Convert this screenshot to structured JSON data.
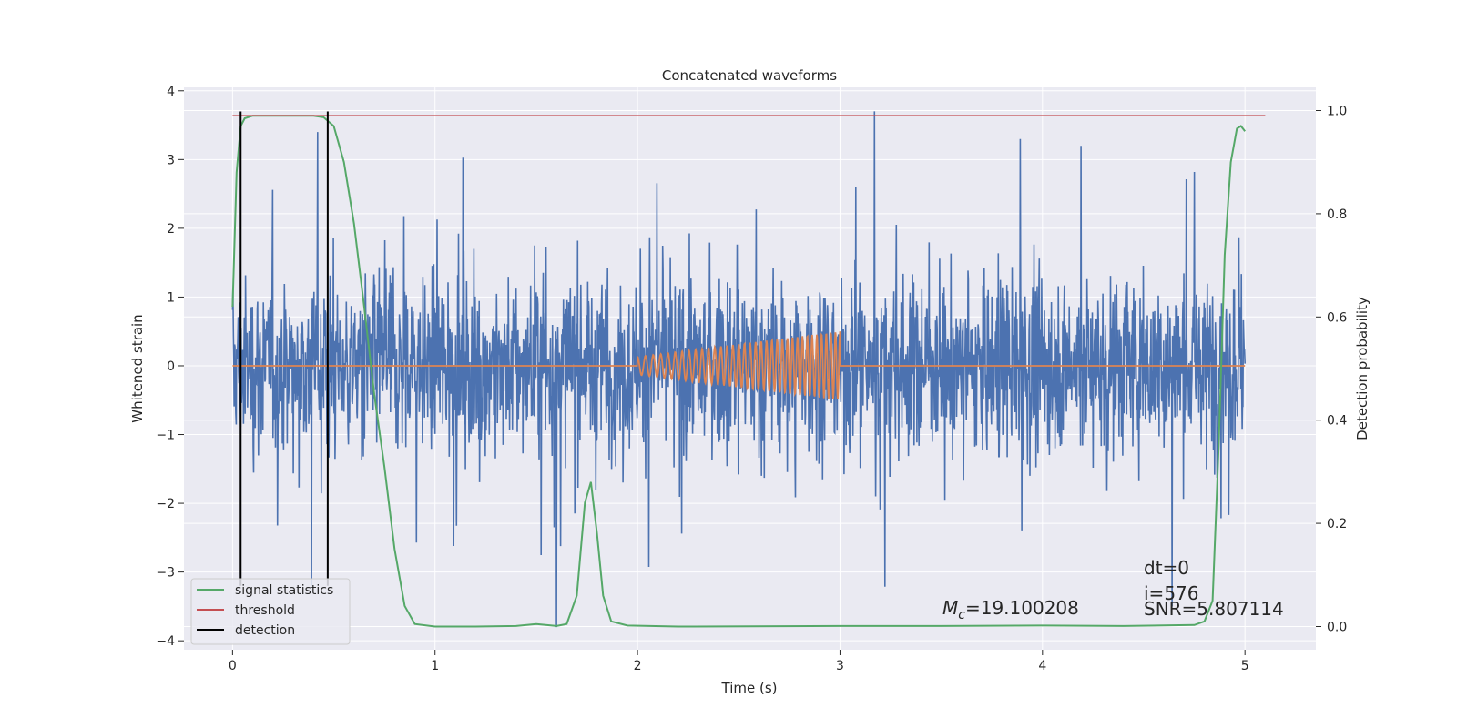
{
  "chart_data": {
    "type": "line",
    "title": "Concatenated waveforms",
    "xlabel": "Time (s)",
    "ylabel": "Whitened strain",
    "ylabel_right": "Detection probability",
    "xlim": [
      -0.24,
      5.35
    ],
    "ylim": [
      -4.13,
      4.05
    ],
    "ylim_right": [
      -0.045,
      1.045
    ],
    "xticks": [
      "0",
      "1",
      "2",
      "3",
      "4",
      "5"
    ],
    "yticks": [
      "4",
      "3",
      "2",
      "1",
      "0",
      "−1",
      "−2",
      "−3",
      "−4"
    ],
    "yticks_right": [
      "1.0",
      "0.8",
      "0.6",
      "0.4",
      "0.2",
      "0.0"
    ],
    "grid": true,
    "legend_position": "lower-left",
    "legend": [
      {
        "name": "signal statistics",
        "color": "#55a868"
      },
      {
        "name": "threshold",
        "color": "#c44e52"
      },
      {
        "name": "detection",
        "color": "#000000"
      }
    ],
    "series": [
      {
        "name": "whitened strain (noise)",
        "axis": "left",
        "color": "#4c72b0",
        "x_range": [
          0,
          5
        ],
        "typical_amplitude": 2.0,
        "peak_max": 3.7,
        "peak_min": -3.8,
        "notable_peaks": [
          [
            0.42,
            3.4
          ],
          [
            3.17,
            3.7
          ],
          [
            3.89,
            3.3
          ],
          [
            4.19,
            3.2
          ],
          [
            1.6,
            -3.8
          ],
          [
            0.39,
            -3.2
          ],
          [
            4.64,
            -3.5
          ]
        ]
      },
      {
        "name": "injected chirp",
        "axis": "left",
        "color": "#dd8452",
        "flat_value": 0,
        "chirp_start": 2.0,
        "chirp_end": 3.0,
        "amplitude_start": 0.13,
        "amplitude_end": 0.5,
        "x_range": [
          0,
          5
        ]
      },
      {
        "name": "signal statistics",
        "axis": "right",
        "color": "#55a868",
        "points": [
          [
            0,
            0.62
          ],
          [
            0.02,
            0.88
          ],
          [
            0.04,
            0.97
          ],
          [
            0.06,
            0.985
          ],
          [
            0.1,
            0.99
          ],
          [
            0.2,
            0.99
          ],
          [
            0.3,
            0.99
          ],
          [
            0.4,
            0.99
          ],
          [
            0.45,
            0.987
          ],
          [
            0.5,
            0.97
          ],
          [
            0.55,
            0.9
          ],
          [
            0.6,
            0.78
          ],
          [
            0.65,
            0.62
          ],
          [
            0.7,
            0.45
          ],
          [
            0.75,
            0.31
          ],
          [
            0.8,
            0.15
          ],
          [
            0.85,
            0.04
          ],
          [
            0.9,
            0.005
          ],
          [
            1.0,
            0.0
          ],
          [
            1.2,
            0.0
          ],
          [
            1.4,
            0.001
          ],
          [
            1.5,
            0.005
          ],
          [
            1.6,
            0.001
          ],
          [
            1.65,
            0.005
          ],
          [
            1.7,
            0.06
          ],
          [
            1.74,
            0.24
          ],
          [
            1.77,
            0.28
          ],
          [
            1.8,
            0.18
          ],
          [
            1.83,
            0.06
          ],
          [
            1.87,
            0.01
          ],
          [
            1.95,
            0.002
          ],
          [
            2.2,
            0.0
          ],
          [
            3.0,
            0.001
          ],
          [
            3.5,
            0.001
          ],
          [
            4.0,
            0.002
          ],
          [
            4.4,
            0.001
          ],
          [
            4.75,
            0.003
          ],
          [
            4.8,
            0.01
          ],
          [
            4.84,
            0.05
          ],
          [
            4.87,
            0.35
          ],
          [
            4.9,
            0.72
          ],
          [
            4.93,
            0.9
          ],
          [
            4.96,
            0.965
          ],
          [
            4.98,
            0.97
          ],
          [
            5.0,
            0.96
          ]
        ]
      },
      {
        "name": "threshold",
        "axis": "right",
        "color": "#c44e52",
        "value": 0.99,
        "x_range": [
          0,
          5.1
        ]
      }
    ],
    "detections": [
      {
        "x": 0.04,
        "y_range": [
          -3.2,
          3.7
        ]
      },
      {
        "x": 0.47,
        "y_range": [
          -3.2,
          3.7
        ]
      }
    ],
    "annotations": {
      "mc_label": "M",
      "mc_sub": "c",
      "mc_value": "=19.100208",
      "dt": "dt=0",
      "i": "i=576",
      "snr": "SNR=5.807114"
    }
  }
}
